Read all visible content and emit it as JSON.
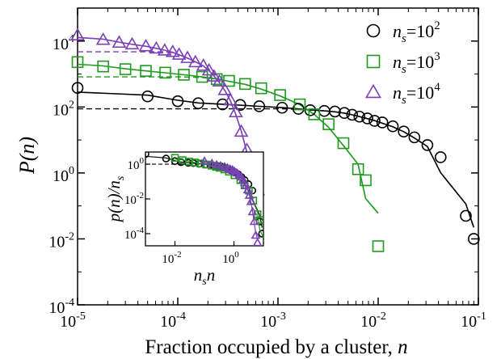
{
  "chart_data": {
    "type": "scatter",
    "xlabel": "Fraction occupied by a cluster, n",
    "xlabel_text": "Fraction occupied by a cluster, ",
    "xlabel_var": "n",
    "ylabel_var": "P(n)",
    "x_scale": "log",
    "y_scale": "log",
    "xlim": [
      1e-05,
      0.1
    ],
    "ylim": [
      0.0001,
      100000
    ],
    "x_ticks": [
      {
        "base": "10",
        "exp": "-5",
        "value": 1e-05
      },
      {
        "base": "10",
        "exp": "-4",
        "value": 0.0001
      },
      {
        "base": "10",
        "exp": "-3",
        "value": 0.001
      },
      {
        "base": "10",
        "exp": "-2",
        "value": 0.01
      },
      {
        "base": "10",
        "exp": "-1",
        "value": 0.1
      }
    ],
    "y_ticks": [
      {
        "base": "10",
        "exp": "-4",
        "value": 0.0001
      },
      {
        "base": "10",
        "exp": "-2",
        "value": 0.01
      },
      {
        "base": "10",
        "exp": "0",
        "value": 1
      },
      {
        "base": "10",
        "exp": "2",
        "value": 100
      },
      {
        "base": "10",
        "exp": "4",
        "value": 10000
      }
    ],
    "grid": false,
    "legend_position": "top-right",
    "series": [
      {
        "name": "n_s=10^2",
        "legend_n": "n",
        "legend_sub": "s",
        "legend_eq": "=10",
        "legend_exp": "2",
        "color": "#000000",
        "marker": "circle",
        "x": [
          1e-05,
          5e-05,
          0.0001,
          0.00016,
          0.00028,
          0.00042,
          0.00065,
          0.0011,
          0.0016,
          0.0021,
          0.0029,
          0.0037,
          0.0046,
          0.0055,
          0.0065,
          0.0078,
          0.0092,
          0.011,
          0.014,
          0.018,
          0.023,
          0.031,
          0.042,
          0.075,
          0.09
        ],
        "y": [
          380,
          210,
          150,
          130,
          120,
          115,
          105,
          95,
          88,
          80,
          76,
          73,
          66,
          58,
          51,
          45,
          38,
          34,
          26,
          18,
          12,
          7,
          3,
          0.05,
          0.01
        ]
      },
      {
        "name": "n_s=10^3",
        "legend_n": "n",
        "legend_sub": "s",
        "legend_eq": "=10",
        "legend_exp": "3",
        "color": "#1f9a1f",
        "marker": "square",
        "x": [
          1e-05,
          1.8e-05,
          3e-05,
          4.8e-05,
          7.5e-05,
          0.000115,
          0.000175,
          0.000245,
          0.000325,
          0.00047,
          0.00068,
          0.00105,
          0.00165,
          0.0023,
          0.0032,
          0.0045,
          0.0063,
          0.0075,
          0.01
        ],
        "y": [
          2300,
          1700,
          1400,
          1250,
          1100,
          950,
          820,
          700,
          620,
          500,
          370,
          230,
          120,
          60,
          30,
          8,
          1.3,
          0.6,
          0.006
        ]
      },
      {
        "name": "n_s=10^4",
        "legend_n": "n",
        "legend_sub": "s",
        "legend_eq": "=10",
        "legend_exp": "4",
        "color": "#7b3fb8",
        "marker": "triangle",
        "x": [
          1e-05,
          1.8e-05,
          2.6e-05,
          3.5e-05,
          4.8e-05,
          6.1e-05,
          7.4e-05,
          8.9e-05,
          0.000103,
          0.000125,
          0.00015,
          0.00018,
          0.000205,
          0.00023,
          0.00026,
          0.000295,
          0.000335,
          0.00038,
          0.00043,
          0.00049,
          0.00055,
          0.00063
        ],
        "y": [
          15000,
          11000,
          9000,
          8000,
          7000,
          6000,
          5200,
          4700,
          3900,
          3100,
          2300,
          1800,
          1300,
          850,
          600,
          330,
          160,
          70,
          18,
          5,
          0.8,
          0.3
        ]
      }
    ],
    "inset": {
      "xlabel_n": "n",
      "xlabel_sub": "s",
      "xlabel_n2": "n",
      "ylabel_text": "p(n)/n",
      "ylabel_sub": "s",
      "x_ticks": [
        {
          "base": "10",
          "exp": "-2",
          "value": 0.01
        },
        {
          "base": "10",
          "exp": "0",
          "value": 1
        }
      ],
      "y_ticks": [
        {
          "base": "10",
          "exp": "0",
          "value": 1
        },
        {
          "base": "10",
          "exp": "-2",
          "value": 0.01
        },
        {
          "base": "10",
          "exp": "-4",
          "value": 0.0001
        }
      ],
      "xlim": [
        0.001,
        10
      ],
      "ylim": [
        2e-05,
        5
      ]
    }
  }
}
